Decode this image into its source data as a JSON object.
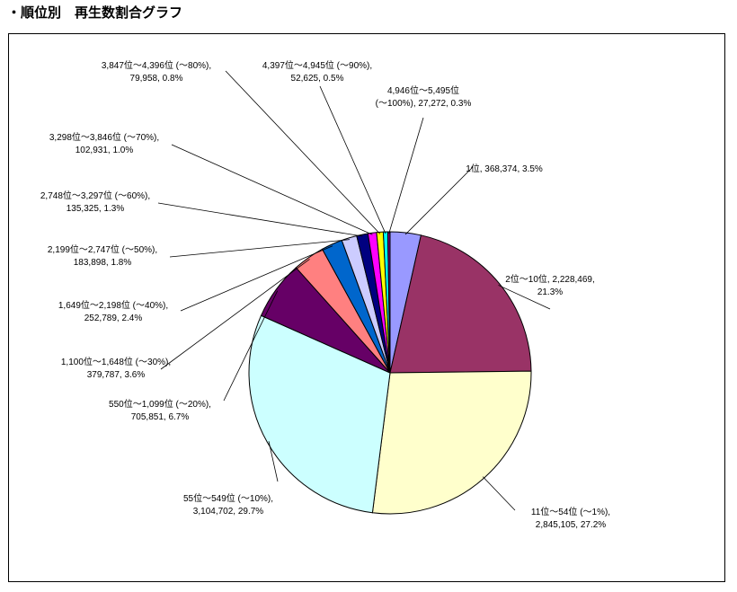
{
  "page": {
    "title": "・順位別　再生数割合グラフ"
  },
  "chart_data": {
    "type": "pie",
    "title": "",
    "slices": [
      {
        "label": "1位",
        "value": 368374,
        "percent": "3.5%",
        "color": "#9999ff",
        "text": [
          "1位, 368,374, 3.5%"
        ]
      },
      {
        "label": "2位～10位",
        "value": 2228469,
        "percent": "21.3%",
        "color": "#993366",
        "text": [
          "2位～10位, 2,228,469,",
          "21.3%"
        ]
      },
      {
        "label": "11位～54位 (～1%)",
        "value": 2845105,
        "percent": "27.2%",
        "color": "#ffffcc",
        "text": [
          "11位～54位 (～1%),",
          "2,845,105, 27.2%"
        ]
      },
      {
        "label": "55位～549位 (～10%)",
        "value": 3104702,
        "percent": "29.7%",
        "color": "#ccffff",
        "text": [
          "55位～549位 (～10%),",
          "3,104,702, 29.7%"
        ]
      },
      {
        "label": "550位～1,099位 (～20%)",
        "value": 705851,
        "percent": "6.7%",
        "color": "#660066",
        "text": [
          "550位～1,099位 (～20%),",
          "705,851, 6.7%"
        ]
      },
      {
        "label": "1,100位～1,648位 (～30%)",
        "value": 379787,
        "percent": "3.6%",
        "color": "#ff8080",
        "text": [
          "1,100位～1,648位 (～30%),",
          "379,787, 3.6%"
        ]
      },
      {
        "label": "1,649位～2,198位 (～40%)",
        "value": 252789,
        "percent": "2.4%",
        "color": "#0066cc",
        "text": [
          "1,649位～2,198位 (～40%),",
          "252,789, 2.4%"
        ]
      },
      {
        "label": "2,199位～2,747位 (～50%)",
        "value": 183898,
        "percent": "1.8%",
        "color": "#ccccff",
        "text": [
          "2,199位～2,747位 (～50%),",
          "183,898, 1.8%"
        ]
      },
      {
        "label": "2,748位～3,297位 (～60%)",
        "value": 135325,
        "percent": "1.3%",
        "color": "#000080",
        "text": [
          "2,748位～3,297位 (～60%),",
          "135,325, 1.3%"
        ]
      },
      {
        "label": "3,298位～3,846位 (～70%)",
        "value": 102931,
        "percent": "1.0%",
        "color": "#ff00ff",
        "text": [
          "3,298位～3,846位 (～70%),",
          "102,931, 1.0%"
        ]
      },
      {
        "label": "3,847位～4,396位 (～80%)",
        "value": 79958,
        "percent": "0.8%",
        "color": "#ffff00",
        "text": [
          "3,847位～4,396位 (～80%),",
          "79,958, 0.8%"
        ]
      },
      {
        "label": "4,397位～4,945位 (～90%)",
        "value": 52625,
        "percent": "0.5%",
        "color": "#00ffff",
        "text": [
          "4,397位～4,945位 (～90%),",
          "52,625, 0.5%"
        ]
      },
      {
        "label": "4,946位～5,495位 (～100%)",
        "value": 27272,
        "percent": "0.3%",
        "color": "#800080",
        "text": [
          "4,946位～5,495位",
          "(～100%), 27,272, 0.3%"
        ]
      }
    ]
  }
}
